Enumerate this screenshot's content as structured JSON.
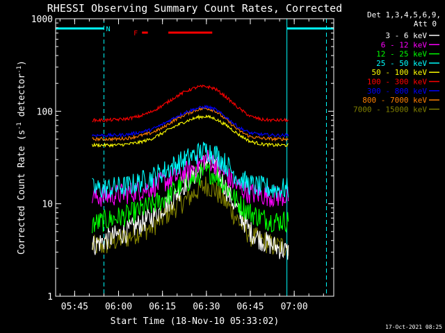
{
  "chart_data": {
    "type": "line",
    "title": "RHESSI Observing Summary Count Rates, Corrected",
    "xlabel": "Start Time (18-Nov-10 05:33:02)",
    "ylabel": "Corrected Count Rate (s-1 detector-1)",
    "ylabel_parts": {
      "main": "Corrected Count Rate (s",
      "sup1": "-1",
      "mid": " detector",
      "sup2": "-1",
      "end": ")"
    },
    "y_scale": "log",
    "ylim": [
      1,
      1000
    ],
    "xlim_minutes": [
      5.5,
      100.5
    ],
    "x_tick_labels": [
      "05:45",
      "06:00",
      "06:15",
      "06:30",
      "06:45",
      "07:00"
    ],
    "x_ticks_minutes": [
      12,
      27,
      42,
      57,
      72,
      87
    ],
    "y_tick_labels": [
      "1",
      "10",
      "100",
      "1000"
    ],
    "y_ticks": [
      1,
      10,
      100,
      1000
    ],
    "legend_header": [
      "Det 1,3,4,5,6,9,",
      "Att 0"
    ],
    "legend_placement": "right",
    "footer_date": "17-Oct-2021 08:25",
    "flags": [
      {
        "label": "N",
        "color": "#00ffff",
        "segments": [
          [
            5.5,
            22.0
          ],
          [
            84.5,
            100.5
          ]
        ]
      },
      {
        "label": "F",
        "color": "#ff0000",
        "segments": [
          [
            35.0,
            37.0
          ],
          [
            44.0,
            59.0
          ]
        ]
      }
    ],
    "vertical_lines": [
      {
        "minute": 5.5,
        "color": "#00ffff",
        "style": "solid"
      },
      {
        "minute": 22.0,
        "color": "#00ffff",
        "style": "dashed"
      },
      {
        "minute": 84.5,
        "color": "#00ffff",
        "style": "solid"
      },
      {
        "minute": 98.0,
        "color": "#00ffff",
        "style": "dashed"
      }
    ],
    "data_start_minute": 18.0,
    "data_end_minute": 85.0,
    "series": [
      {
        "name": "3 - 6 keV",
        "color": "#ffffff",
        "t": [
          18,
          22,
          26,
          30,
          34,
          38,
          42,
          46,
          50,
          54,
          57,
          60,
          64,
          68,
          72,
          76,
          80,
          85
        ],
        "v": [
          3.5,
          4,
          4.5,
          5,
          6,
          7,
          9,
          12,
          17,
          22,
          30,
          25,
          14,
          8,
          5,
          4,
          3.5,
          3
        ]
      },
      {
        "name": "6 - 12 keV",
        "color": "#ff00ff",
        "t": [
          18,
          22,
          26,
          30,
          34,
          38,
          42,
          46,
          50,
          54,
          57,
          60,
          64,
          68,
          72,
          76,
          80,
          85
        ],
        "v": [
          12,
          12,
          12.5,
          13,
          14,
          15,
          17,
          19,
          22,
          26,
          31,
          27,
          20,
          15,
          13,
          12.5,
          12,
          12
        ]
      },
      {
        "name": "12 - 25 keV",
        "color": "#00ff00",
        "t": [
          18,
          22,
          26,
          30,
          34,
          38,
          42,
          46,
          50,
          54,
          57,
          60,
          64,
          68,
          72,
          76,
          80,
          85
        ],
        "v": [
          6,
          6.5,
          7,
          7.5,
          8.5,
          9.5,
          11,
          14,
          17,
          20,
          22,
          21,
          15,
          10,
          8,
          7,
          6.5,
          6.5
        ]
      },
      {
        "name": "25 - 50 keV",
        "color": "#00ffff",
        "t": [
          18,
          22,
          26,
          30,
          34,
          38,
          42,
          46,
          50,
          54,
          57,
          60,
          64,
          68,
          72,
          76,
          80,
          85
        ],
        "v": [
          14.5,
          14.5,
          15,
          15.5,
          17,
          19,
          22,
          26,
          30,
          35,
          38,
          35,
          26,
          19,
          16,
          15,
          14.5,
          14.5
        ]
      },
      {
        "name": "50 - 100 keV",
        "color": "#ffff00",
        "t": [
          18,
          22,
          26,
          30,
          34,
          38,
          42,
          46,
          50,
          54,
          57,
          60,
          64,
          68,
          72,
          76,
          80,
          85
        ],
        "v": [
          43,
          43,
          43,
          44,
          46,
          50,
          58,
          68,
          78,
          86,
          88,
          83,
          70,
          56,
          47,
          44,
          43,
          43
        ]
      },
      {
        "name": "100 - 300 keV",
        "color": "#ff0000",
        "t": [
          18,
          22,
          26,
          30,
          34,
          38,
          42,
          46,
          50,
          54,
          57,
          60,
          64,
          68,
          72,
          76,
          80,
          85
        ],
        "v": [
          80,
          80,
          81,
          83,
          88,
          98,
          115,
          140,
          165,
          183,
          185,
          175,
          140,
          108,
          88,
          81,
          80,
          80
        ]
      },
      {
        "name": "300 - 800 keV",
        "color": "#0000ff",
        "t": [
          18,
          22,
          26,
          30,
          34,
          38,
          42,
          46,
          50,
          54,
          57,
          60,
          64,
          68,
          72,
          76,
          80,
          85
        ],
        "v": [
          55,
          55,
          55,
          56,
          59,
          63,
          72,
          85,
          98,
          108,
          112,
          105,
          85,
          67,
          58,
          56,
          55,
          55
        ]
      },
      {
        "name": "800 - 7000 keV",
        "color": "#ff8000",
        "t": [
          18,
          22,
          26,
          30,
          34,
          38,
          42,
          46,
          50,
          54,
          57,
          60,
          64,
          68,
          72,
          76,
          80,
          85
        ],
        "v": [
          50,
          50,
          50,
          51,
          54,
          58,
          66,
          80,
          93,
          104,
          108,
          101,
          80,
          62,
          53,
          51,
          50,
          50
        ]
      },
      {
        "name": "7000 - 15000 keV",
        "color": "#808000",
        "t": [
          18,
          22,
          26,
          30,
          34,
          38,
          42,
          46,
          50,
          54,
          57,
          60,
          64,
          68,
          72,
          76,
          80,
          85
        ],
        "v": [
          3.5,
          3.5,
          4,
          4.3,
          5,
          5.5,
          7,
          9,
          11,
          14,
          16,
          14,
          10,
          6.5,
          4.5,
          4,
          3.5,
          3.5
        ]
      }
    ]
  }
}
